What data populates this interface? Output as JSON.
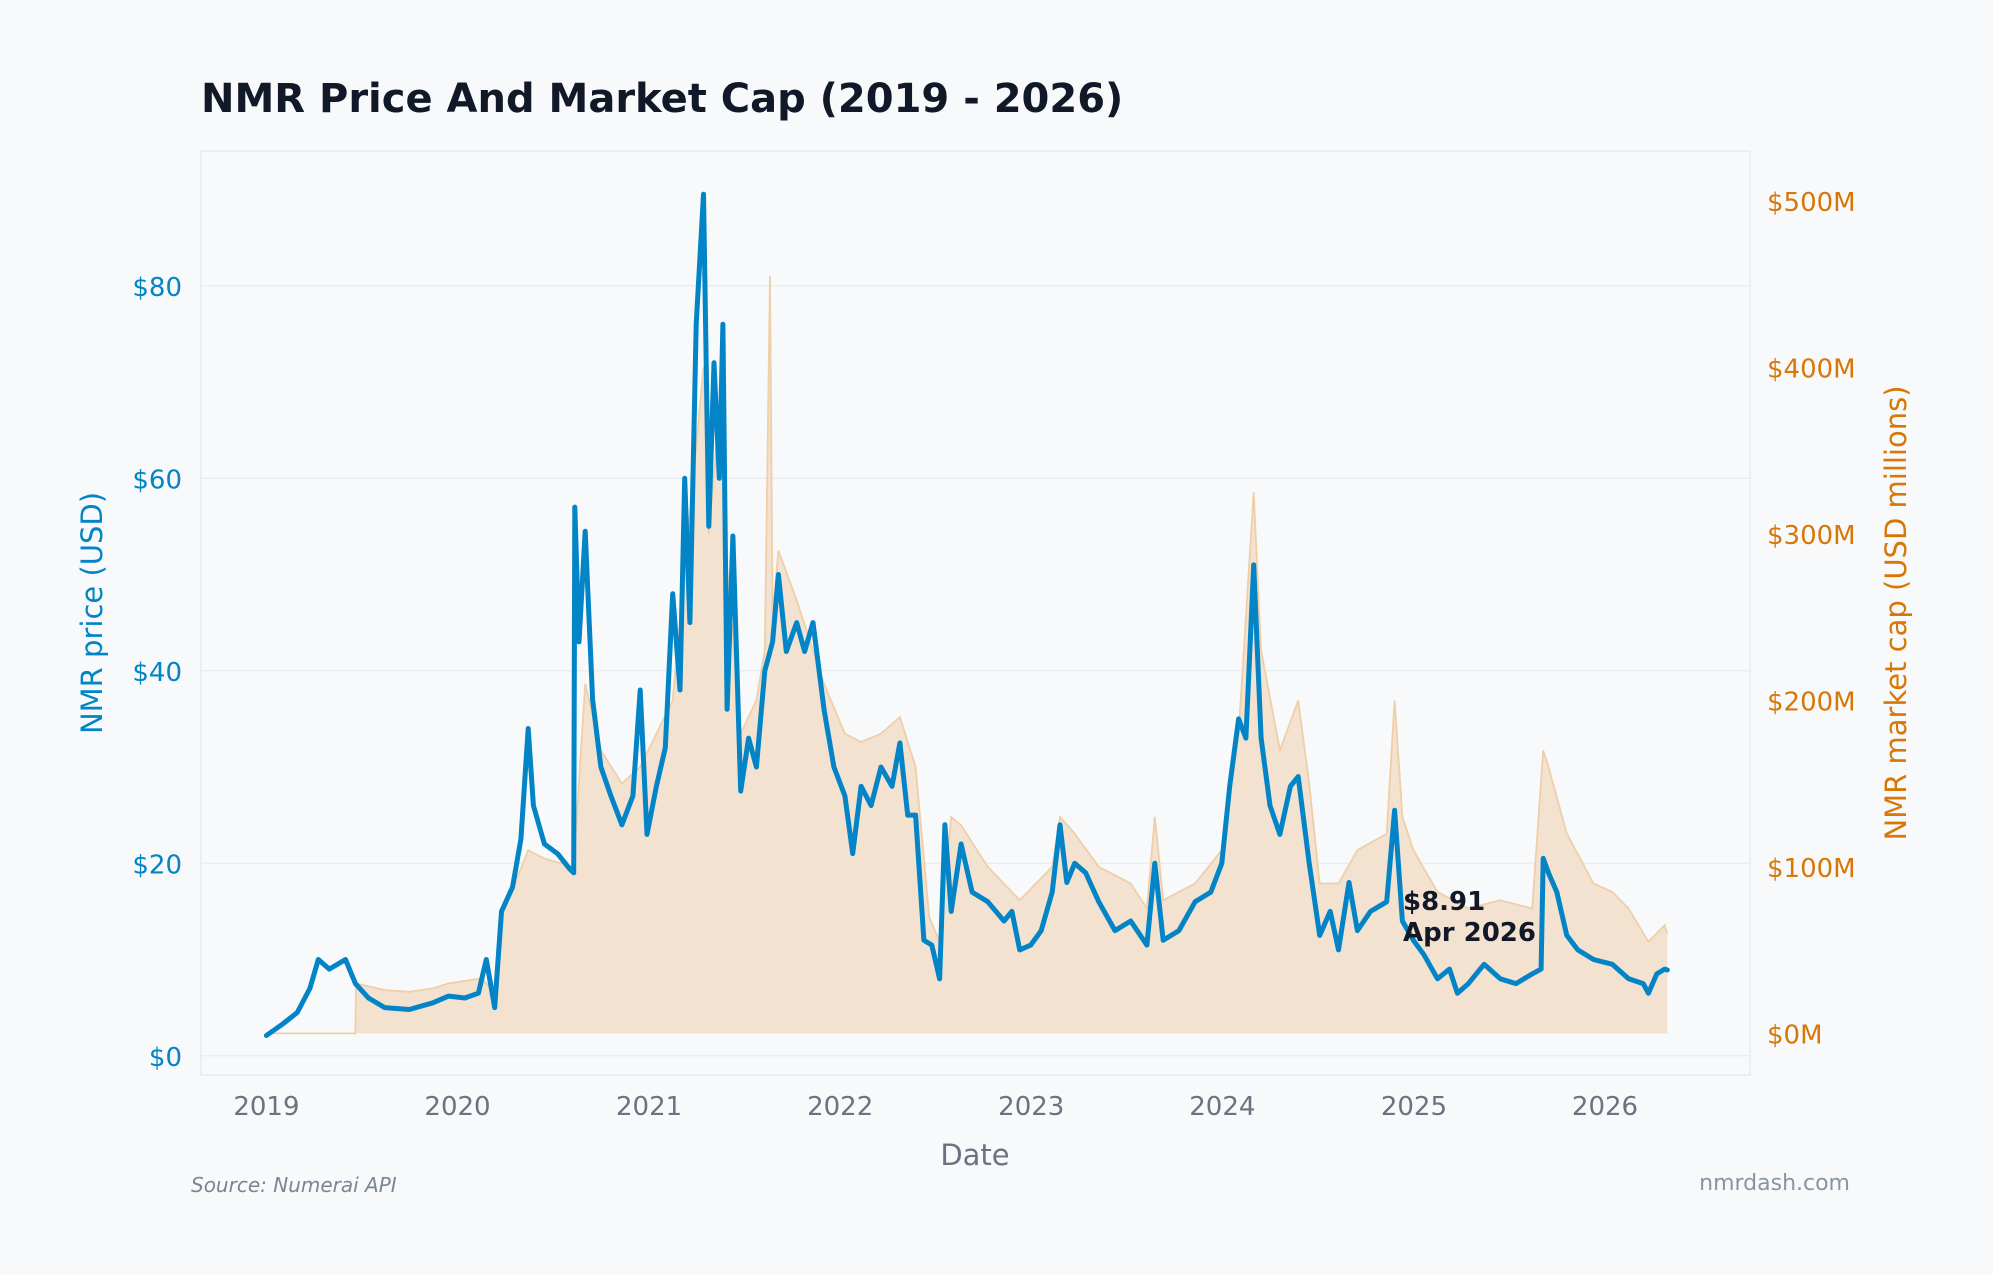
{
  "chart_data": {
    "type": "line",
    "title": "NMR Price And Market Cap (2019 - 2026)",
    "xlabel": "Date",
    "ylabel_left": "NMR price (USD)",
    "ylabel_right": "NMR market cap (USD millions)",
    "x_ticks": [
      "2019",
      "2020",
      "2021",
      "2022",
      "2023",
      "2024",
      "2025",
      "2026"
    ],
    "y_left_ticks": [
      "$0",
      "$20",
      "$40",
      "$60",
      "$80"
    ],
    "y_right_ticks": [
      "$0M",
      "$100M",
      "$200M",
      "$300M",
      "$400M",
      "$500M"
    ],
    "y_left_range": [
      -2,
      94
    ],
    "y_right_range": [
      -25,
      530
    ],
    "x_range": [
      "2018-08-29",
      "2026-10-05"
    ],
    "grid": true,
    "colors": {
      "price": "#0284c7",
      "market_cap": "#d97706",
      "market_cap_fill": "#f2e0cd",
      "title": "#111827",
      "axis_text": "#6b7280"
    },
    "series": [
      {
        "name": "NMR price (USD)",
        "axis": "left",
        "points": [
          [
            "2019-01-01",
            2.1
          ],
          [
            "2019-02-01",
            3.3
          ],
          [
            "2019-03-01",
            4.5
          ],
          [
            "2019-03-25",
            7.0
          ],
          [
            "2019-04-10",
            10.0
          ],
          [
            "2019-05-01",
            9.0
          ],
          [
            "2019-06-01",
            10.0
          ],
          [
            "2019-06-20",
            7.5
          ],
          [
            "2019-07-15",
            6.0
          ],
          [
            "2019-08-15",
            5.0
          ],
          [
            "2019-10-01",
            4.8
          ],
          [
            "2019-11-15",
            5.5
          ],
          [
            "2019-12-15",
            6.2
          ],
          [
            "2020-01-15",
            6.0
          ],
          [
            "2020-02-10",
            6.5
          ],
          [
            "2020-02-25",
            10.0
          ],
          [
            "2020-03-12",
            5.0
          ],
          [
            "2020-03-25",
            15.0
          ],
          [
            "2020-04-15",
            17.5
          ],
          [
            "2020-05-01",
            22.5
          ],
          [
            "2020-05-15",
            34.0
          ],
          [
            "2020-05-25",
            26.0
          ],
          [
            "2020-06-15",
            22.0
          ],
          [
            "2020-07-10",
            21.0
          ],
          [
            "2020-08-01",
            19.5
          ],
          [
            "2020-08-10",
            19.0
          ],
          [
            "2020-08-12",
            57.0
          ],
          [
            "2020-08-20",
            43.0
          ],
          [
            "2020-09-01",
            54.5
          ],
          [
            "2020-09-15",
            37.0
          ],
          [
            "2020-10-01",
            30.0
          ],
          [
            "2020-10-20",
            27.0
          ],
          [
            "2020-11-10",
            24.0
          ],
          [
            "2020-12-01",
            27.0
          ],
          [
            "2020-12-15",
            38.0
          ],
          [
            "2020-12-28",
            23.0
          ],
          [
            "2021-01-15",
            28.0
          ],
          [
            "2021-02-01",
            32.0
          ],
          [
            "2021-02-15",
            48.0
          ],
          [
            "2021-03-01",
            38.0
          ],
          [
            "2021-03-10",
            60.0
          ],
          [
            "2021-03-20",
            45.0
          ],
          [
            "2021-04-01",
            76.0
          ],
          [
            "2021-04-15",
            89.5
          ],
          [
            "2021-04-25",
            55.0
          ],
          [
            "2021-05-05",
            72.0
          ],
          [
            "2021-05-15",
            60.0
          ],
          [
            "2021-05-22",
            76.0
          ],
          [
            "2021-05-30",
            36.0
          ],
          [
            "2021-06-10",
            54.0
          ],
          [
            "2021-06-25",
            27.5
          ],
          [
            "2021-07-10",
            33.0
          ],
          [
            "2021-07-25",
            30.0
          ],
          [
            "2021-08-10",
            40.0
          ],
          [
            "2021-08-25",
            43.0
          ],
          [
            "2021-09-05",
            50.0
          ],
          [
            "2021-09-20",
            42.0
          ],
          [
            "2021-10-10",
            45.0
          ],
          [
            "2021-10-25",
            42.0
          ],
          [
            "2021-11-10",
            45.0
          ],
          [
            "2021-12-01",
            36.0
          ],
          [
            "2021-12-20",
            30.0
          ],
          [
            "2022-01-10",
            27.0
          ],
          [
            "2022-01-25",
            21.0
          ],
          [
            "2022-02-10",
            28.0
          ],
          [
            "2022-03-01",
            26.0
          ],
          [
            "2022-03-20",
            30.0
          ],
          [
            "2022-04-10",
            28.0
          ],
          [
            "2022-04-25",
            32.5
          ],
          [
            "2022-05-10",
            25.0
          ],
          [
            "2022-05-25",
            25.0
          ],
          [
            "2022-06-10",
            12.0
          ],
          [
            "2022-06-25",
            11.5
          ],
          [
            "2022-07-10",
            8.0
          ],
          [
            "2022-07-20",
            24.0
          ],
          [
            "2022-08-01",
            15.0
          ],
          [
            "2022-08-20",
            22.0
          ],
          [
            "2022-09-10",
            17.0
          ],
          [
            "2022-10-10",
            16.0
          ],
          [
            "2022-11-10",
            14.0
          ],
          [
            "2022-11-25",
            15.0
          ],
          [
            "2022-12-10",
            11.0
          ],
          [
            "2022-12-31",
            11.5
          ],
          [
            "2023-01-20",
            13.0
          ],
          [
            "2023-02-10",
            17.0
          ],
          [
            "2023-02-25",
            24.0
          ],
          [
            "2023-03-10",
            18.0
          ],
          [
            "2023-03-25",
            20.0
          ],
          [
            "2023-04-15",
            19.0
          ],
          [
            "2023-05-10",
            16.0
          ],
          [
            "2023-06-10",
            13.0
          ],
          [
            "2023-07-10",
            14.0
          ],
          [
            "2023-08-10",
            11.5
          ],
          [
            "2023-08-25",
            20.0
          ],
          [
            "2023-09-10",
            12.0
          ],
          [
            "2023-10-10",
            13.0
          ],
          [
            "2023-11-10",
            16.0
          ],
          [
            "2023-12-10",
            17.0
          ],
          [
            "2023-12-31",
            20.0
          ],
          [
            "2024-01-15",
            28.0
          ],
          [
            "2024-02-01",
            35.0
          ],
          [
            "2024-02-15",
            33.0
          ],
          [
            "2024-03-01",
            51.0
          ],
          [
            "2024-03-15",
            33.0
          ],
          [
            "2024-04-01",
            26.0
          ],
          [
            "2024-04-20",
            23.0
          ],
          [
            "2024-05-10",
            28.0
          ],
          [
            "2024-05-25",
            29.0
          ],
          [
            "2024-06-15",
            20.0
          ],
          [
            "2024-07-05",
            12.5
          ],
          [
            "2024-07-25",
            15.0
          ],
          [
            "2024-08-10",
            11.0
          ],
          [
            "2024-08-30",
            18.0
          ],
          [
            "2024-09-15",
            13.0
          ],
          [
            "2024-10-10",
            15.0
          ],
          [
            "2024-11-10",
            16.0
          ],
          [
            "2024-11-25",
            25.5
          ],
          [
            "2024-12-10",
            14.0
          ],
          [
            "2024-12-31",
            12.0
          ],
          [
            "2025-01-20",
            10.5
          ],
          [
            "2025-02-15",
            8.0
          ],
          [
            "2025-03-10",
            9.0
          ],
          [
            "2025-03-25",
            6.5
          ],
          [
            "2025-04-15",
            7.5
          ],
          [
            "2025-05-15",
            9.5
          ],
          [
            "2025-06-15",
            8.0
          ],
          [
            "2025-07-15",
            7.5
          ],
          [
            "2025-08-15",
            8.5
          ],
          [
            "2025-09-01",
            9.0
          ],
          [
            "2025-09-05",
            20.5
          ],
          [
            "2025-09-15",
            19.0
          ],
          [
            "2025-10-01",
            17.0
          ],
          [
            "2025-10-20",
            12.5
          ],
          [
            "2025-11-10",
            11.0
          ],
          [
            "2025-12-10",
            10.0
          ],
          [
            "2026-01-15",
            9.5
          ],
          [
            "2026-02-15",
            8.0
          ],
          [
            "2026-03-15",
            7.5
          ],
          [
            "2026-03-25",
            6.5
          ],
          [
            "2026-04-10",
            8.5
          ],
          [
            "2026-04-25",
            9.0
          ],
          [
            "2026-04-30",
            8.91
          ]
        ]
      },
      {
        "name": "NMR market cap (USD millions)",
        "axis": "right",
        "points": [
          [
            "2019-01-01",
            0
          ],
          [
            "2019-06-20",
            0
          ],
          [
            "2019-06-21",
            30
          ],
          [
            "2019-08-15",
            26
          ],
          [
            "2019-10-01",
            25
          ],
          [
            "2019-11-15",
            27
          ],
          [
            "2019-12-15",
            30
          ],
          [
            "2020-02-15",
            33
          ],
          [
            "2020-03-12",
            25
          ],
          [
            "2020-03-25",
            70
          ],
          [
            "2020-05-15",
            110
          ],
          [
            "2020-06-15",
            105
          ],
          [
            "2020-08-10",
            100
          ],
          [
            "2020-09-01",
            210
          ],
          [
            "2020-10-01",
            170
          ],
          [
            "2020-11-10",
            150
          ],
          [
            "2020-12-15",
            160
          ],
          [
            "2021-02-15",
            200
          ],
          [
            "2021-04-15",
            400
          ],
          [
            "2021-04-25",
            300
          ],
          [
            "2021-05-22",
            400
          ],
          [
            "2021-05-30",
            280
          ],
          [
            "2021-06-25",
            180
          ],
          [
            "2021-07-25",
            200
          ],
          [
            "2021-08-10",
            230
          ],
          [
            "2021-08-20",
            455
          ],
          [
            "2021-08-25",
            250
          ],
          [
            "2021-09-05",
            290
          ],
          [
            "2021-10-10",
            260
          ],
          [
            "2021-12-01",
            210
          ],
          [
            "2022-01-10",
            180
          ],
          [
            "2022-02-10",
            175
          ],
          [
            "2022-03-20",
            180
          ],
          [
            "2022-04-25",
            190
          ],
          [
            "2022-05-25",
            160
          ],
          [
            "2022-06-20",
            70
          ],
          [
            "2022-07-10",
            55
          ],
          [
            "2022-08-01",
            130
          ],
          [
            "2022-08-20",
            125
          ],
          [
            "2022-10-10",
            100
          ],
          [
            "2022-12-10",
            80
          ],
          [
            "2023-02-10",
            100
          ],
          [
            "2023-02-25",
            130
          ],
          [
            "2023-03-25",
            120
          ],
          [
            "2023-05-10",
            100
          ],
          [
            "2023-07-10",
            90
          ],
          [
            "2023-08-10",
            75
          ],
          [
            "2023-08-25",
            130
          ],
          [
            "2023-09-10",
            80
          ],
          [
            "2023-11-10",
            90
          ],
          [
            "2023-12-31",
            110
          ],
          [
            "2024-02-01",
            180
          ],
          [
            "2024-03-01",
            325
          ],
          [
            "2024-03-15",
            230
          ],
          [
            "2024-04-20",
            170
          ],
          [
            "2024-05-25",
            200
          ],
          [
            "2024-06-15",
            150
          ],
          [
            "2024-07-05",
            90
          ],
          [
            "2024-08-10",
            90
          ],
          [
            "2024-09-15",
            110
          ],
          [
            "2024-11-10",
            120
          ],
          [
            "2024-11-25",
            200
          ],
          [
            "2024-12-10",
            130
          ],
          [
            "2024-12-31",
            110
          ],
          [
            "2025-02-15",
            85
          ],
          [
            "2025-04-15",
            75
          ],
          [
            "2025-06-15",
            80
          ],
          [
            "2025-08-15",
            75
          ],
          [
            "2025-09-05",
            170
          ],
          [
            "2025-09-15",
            160
          ],
          [
            "2025-10-20",
            120
          ],
          [
            "2025-12-10",
            90
          ],
          [
            "2026-01-15",
            85
          ],
          [
            "2026-02-15",
            75
          ],
          [
            "2026-03-25",
            55
          ],
          [
            "2026-04-25",
            65
          ],
          [
            "2026-04-30",
            60
          ]
        ]
      }
    ],
    "annotation": {
      "value": "$8.91",
      "date": "Apr 2026"
    }
  },
  "footer": {
    "source": "Source: Numerai API",
    "site": "nmrdash.com"
  }
}
